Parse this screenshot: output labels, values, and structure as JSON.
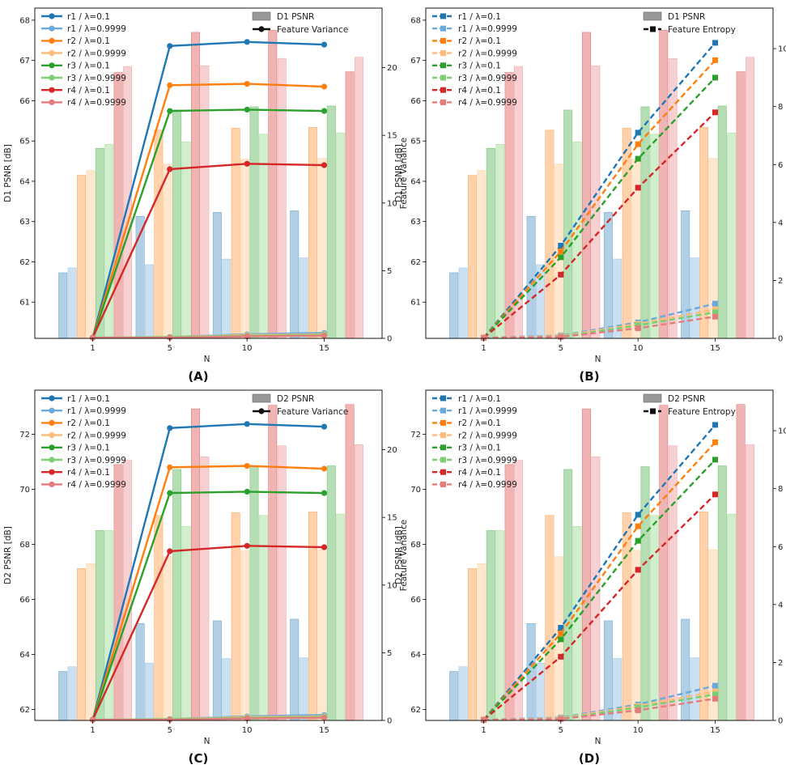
{
  "figure": {
    "panel_labels": [
      "(A)",
      "(B)",
      "(C)",
      "(D)"
    ]
  },
  "colors": {
    "r1": "#1f77b4",
    "r1_light": "#6aa9db",
    "r2": "#ff7f0e",
    "r2_light": "#ffbb78",
    "r3": "#2ca02c",
    "r3_light": "#7ccf71",
    "r4": "#d62728",
    "r4_light": "#e77c7c",
    "legend_bar": "#999999"
  },
  "chart_data": [
    {
      "id": "A",
      "type": "bar+line",
      "x": [
        1,
        5,
        10,
        15
      ],
      "xlabel": "N",
      "ylabel": "D1 PSNR [dB]",
      "ylim": [
        60.1,
        68.3
      ],
      "yticks": [
        61,
        62,
        63,
        64,
        65,
        66,
        67,
        68
      ],
      "y2label": "Feature Variance",
      "y2lim": [
        0,
        24.4
      ],
      "y2ticks": [
        0,
        5,
        10,
        15,
        20
      ],
      "bar_legend": "D1 PSNR",
      "line_legend": "Feature Variance",
      "line_style": "solid",
      "marker": "circle",
      "bars": [
        {
          "name": "r1 / λ=0.1",
          "values": [
            61.73,
            63.13,
            63.23,
            63.27
          ]
        },
        {
          "name": "r1 / λ=0.9999",
          "values": [
            61.85,
            61.93,
            62.07,
            62.1
          ]
        },
        {
          "name": "r2 / λ=0.1",
          "values": [
            64.15,
            65.27,
            65.32,
            65.34
          ]
        },
        {
          "name": "r2 / λ=0.9999",
          "values": [
            64.27,
            64.43,
            64.55,
            64.57
          ]
        },
        {
          "name": "r3 / λ=0.1",
          "values": [
            64.82,
            65.77,
            65.85,
            65.87
          ]
        },
        {
          "name": "r3 / λ=0.9999",
          "values": [
            64.92,
            64.98,
            65.17,
            65.2
          ]
        },
        {
          "name": "r4 / λ=0.1",
          "values": [
            66.7,
            67.7,
            67.75,
            66.72
          ]
        },
        {
          "name": "r4 / λ=0.9999",
          "values": [
            66.85,
            66.87,
            67.05,
            67.08
          ]
        }
      ],
      "lines": [
        {
          "name": "r1 / λ=0.1",
          "values": [
            0.05,
            21.6,
            21.9,
            21.7
          ]
        },
        {
          "name": "r1 / λ=0.9999",
          "values": [
            0.05,
            0.1,
            0.3,
            0.4
          ]
        },
        {
          "name": "r2 / λ=0.1",
          "values": [
            0.05,
            18.7,
            18.8,
            18.6
          ]
        },
        {
          "name": "r2 / λ=0.9999",
          "values": [
            0.05,
            0.1,
            0.25,
            0.3
          ]
        },
        {
          "name": "r3 / λ=0.1",
          "values": [
            0.05,
            16.8,
            16.9,
            16.8
          ]
        },
        {
          "name": "r3 / λ=0.9999",
          "values": [
            0.05,
            0.1,
            0.2,
            0.25
          ]
        },
        {
          "name": "r4 / λ=0.1",
          "values": [
            0.05,
            12.5,
            12.9,
            12.8
          ]
        },
        {
          "name": "r4 / λ=0.9999",
          "values": [
            0.05,
            0.05,
            0.15,
            0.2
          ]
        }
      ]
    },
    {
      "id": "B",
      "type": "bar+line",
      "x": [
        1,
        5,
        10,
        15
      ],
      "xlabel": "N",
      "ylabel": "D1 PSNR [dB]",
      "ylim": [
        60.1,
        68.3
      ],
      "yticks": [
        61,
        62,
        63,
        64,
        65,
        66,
        67,
        68
      ],
      "y2label": "Feature Entropy",
      "y2lim": [
        0,
        11.4
      ],
      "y2ticks": [
        0,
        2,
        4,
        6,
        8,
        10
      ],
      "bar_legend": "D1 PSNR",
      "line_legend": "Feature Entropy",
      "line_style": "dashed",
      "marker": "square",
      "bars": [
        {
          "name": "r1 / λ=0.1",
          "values": [
            61.73,
            63.13,
            63.23,
            63.27
          ]
        },
        {
          "name": "r1 / λ=0.9999",
          "values": [
            61.85,
            61.93,
            62.07,
            62.1
          ]
        },
        {
          "name": "r2 / λ=0.1",
          "values": [
            64.15,
            65.27,
            65.32,
            65.34
          ]
        },
        {
          "name": "r2 / λ=0.9999",
          "values": [
            64.27,
            64.43,
            64.55,
            64.57
          ]
        },
        {
          "name": "r3 / λ=0.1",
          "values": [
            64.82,
            65.77,
            65.85,
            65.87
          ]
        },
        {
          "name": "r3 / λ=0.9999",
          "values": [
            64.92,
            64.98,
            65.17,
            65.2
          ]
        },
        {
          "name": "r4 / λ=0.1",
          "values": [
            66.7,
            67.7,
            67.75,
            66.72
          ]
        },
        {
          "name": "r4 / λ=0.9999",
          "values": [
            66.85,
            66.87,
            67.05,
            67.08
          ]
        }
      ],
      "lines": [
        {
          "name": "r1 / λ=0.1",
          "values": [
            0.02,
            3.2,
            7.1,
            10.2
          ]
        },
        {
          "name": "r1 / λ=0.9999",
          "values": [
            0.02,
            0.1,
            0.55,
            1.2
          ]
        },
        {
          "name": "r2 / λ=0.1",
          "values": [
            0.02,
            3.0,
            6.7,
            9.6
          ]
        },
        {
          "name": "r2 / λ=0.9999",
          "values": [
            0.02,
            0.08,
            0.5,
            1.0
          ]
        },
        {
          "name": "r3 / λ=0.1",
          "values": [
            0.02,
            2.8,
            6.2,
            9.0
          ]
        },
        {
          "name": "r3 / λ=0.9999",
          "values": [
            0.02,
            0.06,
            0.45,
            0.9
          ]
        },
        {
          "name": "r4 / λ=0.1",
          "values": [
            0.02,
            2.2,
            5.2,
            7.8
          ]
        },
        {
          "name": "r4 / λ=0.9999",
          "values": [
            0.02,
            0.05,
            0.35,
            0.75
          ]
        }
      ]
    },
    {
      "id": "C",
      "type": "bar+line",
      "x": [
        1,
        5,
        10,
        15
      ],
      "xlabel": "N",
      "ylabel": "D2 PSNR [dB]",
      "ylim": [
        61.6,
        73.6
      ],
      "yticks": [
        62,
        64,
        66,
        68,
        70,
        72
      ],
      "y2label": "Feature Variance",
      "y2lim": [
        0,
        24.4
      ],
      "y2ticks": [
        0,
        5,
        10,
        15,
        20
      ],
      "bar_legend": "D2 PSNR",
      "line_legend": "Feature Variance",
      "line_style": "solid",
      "marker": "circle",
      "bars": [
        {
          "name": "r1 / λ=0.1",
          "values": [
            63.38,
            65.12,
            65.22,
            65.28
          ]
        },
        {
          "name": "r1 / λ=0.9999",
          "values": [
            63.55,
            63.68,
            63.85,
            63.88
          ]
        },
        {
          "name": "r2 / λ=0.1",
          "values": [
            67.12,
            69.05,
            69.15,
            69.18
          ]
        },
        {
          "name": "r2 / λ=0.9999",
          "values": [
            67.3,
            67.55,
            67.78,
            67.8
          ]
        },
        {
          "name": "r3 / λ=0.1",
          "values": [
            68.5,
            70.72,
            70.82,
            70.85
          ]
        },
        {
          "name": "r3 / λ=0.9999",
          "values": [
            68.5,
            68.65,
            69.05,
            69.1
          ]
        },
        {
          "name": "r4 / λ=0.1",
          "values": [
            70.9,
            72.92,
            73.05,
            73.08
          ]
        },
        {
          "name": "r4 / λ=0.9999",
          "values": [
            71.05,
            71.18,
            71.58,
            71.62
          ]
        }
      ],
      "lines": [
        {
          "name": "r1 / λ=0.1",
          "values": [
            0.05,
            21.6,
            21.9,
            21.7
          ]
        },
        {
          "name": "r1 / λ=0.9999",
          "values": [
            0.05,
            0.1,
            0.3,
            0.4
          ]
        },
        {
          "name": "r2 / λ=0.1",
          "values": [
            0.05,
            18.7,
            18.8,
            18.6
          ]
        },
        {
          "name": "r2 / λ=0.9999",
          "values": [
            0.05,
            0.1,
            0.25,
            0.3
          ]
        },
        {
          "name": "r3 / λ=0.1",
          "values": [
            0.05,
            16.8,
            16.9,
            16.8
          ]
        },
        {
          "name": "r3 / λ=0.9999",
          "values": [
            0.05,
            0.1,
            0.2,
            0.25
          ]
        },
        {
          "name": "r4 / λ=0.1",
          "values": [
            0.05,
            12.5,
            12.9,
            12.8
          ]
        },
        {
          "name": "r4 / λ=0.9999",
          "values": [
            0.05,
            0.05,
            0.15,
            0.2
          ]
        }
      ]
    },
    {
      "id": "D",
      "type": "bar+line",
      "x": [
        1,
        5,
        10,
        15
      ],
      "xlabel": "N",
      "ylabel": "D2 PSNR [dB]",
      "ylim": [
        61.6,
        73.6
      ],
      "yticks": [
        62,
        64,
        66,
        68,
        70,
        72
      ],
      "y2label": "Feature Entropy",
      "y2lim": [
        0,
        11.4
      ],
      "y2ticks": [
        0,
        2,
        4,
        6,
        8,
        10
      ],
      "bar_legend": "D2 PSNR",
      "line_legend": "Feature Entropy",
      "line_style": "dashed",
      "marker": "square",
      "bars": [
        {
          "name": "r1 / λ=0.1",
          "values": [
            63.38,
            65.12,
            65.22,
            65.28
          ]
        },
        {
          "name": "r1 / λ=0.9999",
          "values": [
            63.55,
            63.68,
            63.85,
            63.88
          ]
        },
        {
          "name": "r2 / λ=0.1",
          "values": [
            67.12,
            69.05,
            69.15,
            69.18
          ]
        },
        {
          "name": "r2 / λ=0.9999",
          "values": [
            67.3,
            67.55,
            67.78,
            67.8
          ]
        },
        {
          "name": "r3 / λ=0.1",
          "values": [
            68.5,
            70.72,
            70.82,
            70.85
          ]
        },
        {
          "name": "r3 / λ=0.9999",
          "values": [
            68.5,
            68.65,
            69.05,
            69.1
          ]
        },
        {
          "name": "r4 / λ=0.1",
          "values": [
            70.9,
            72.92,
            73.05,
            73.08
          ]
        },
        {
          "name": "r4 / λ=0.9999",
          "values": [
            71.05,
            71.18,
            71.58,
            71.62
          ]
        }
      ],
      "lines": [
        {
          "name": "r1 / λ=0.1",
          "values": [
            0.02,
            3.2,
            7.1,
            10.2
          ]
        },
        {
          "name": "r1 / λ=0.9999",
          "values": [
            0.02,
            0.1,
            0.55,
            1.2
          ]
        },
        {
          "name": "r2 / λ=0.1",
          "values": [
            0.02,
            3.0,
            6.7,
            9.6
          ]
        },
        {
          "name": "r2 / λ=0.9999",
          "values": [
            0.02,
            0.08,
            0.5,
            1.0
          ]
        },
        {
          "name": "r3 / λ=0.1",
          "values": [
            0.02,
            2.8,
            6.2,
            9.0
          ]
        },
        {
          "name": "r3 / λ=0.9999",
          "values": [
            0.02,
            0.06,
            0.45,
            0.9
          ]
        },
        {
          "name": "r4 / λ=0.1",
          "values": [
            0.02,
            2.2,
            5.2,
            7.8
          ]
        },
        {
          "name": "r4 / λ=0.9999",
          "values": [
            0.02,
            0.05,
            0.35,
            0.75
          ]
        }
      ]
    }
  ]
}
